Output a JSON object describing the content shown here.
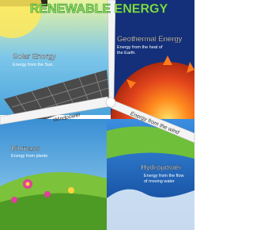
{
  "title": "RENEWABLE ENERGY",
  "panels": [
    {
      "title": "Solar Energy",
      "caption": [
        "Energy from the Sun."
      ]
    },
    {
      "title": "Geothermal Energy",
      "caption": [
        "Energy from the heat of",
        "the Earth."
      ]
    },
    {
      "title": "Biomass",
      "caption": [
        "Energy from plants"
      ]
    },
    {
      "title": "Hydropower",
      "caption": [
        "Energy from the flow",
        "of moving water"
      ]
    }
  ],
  "blades": [
    "Windpower",
    "Energy from the wind"
  ]
}
